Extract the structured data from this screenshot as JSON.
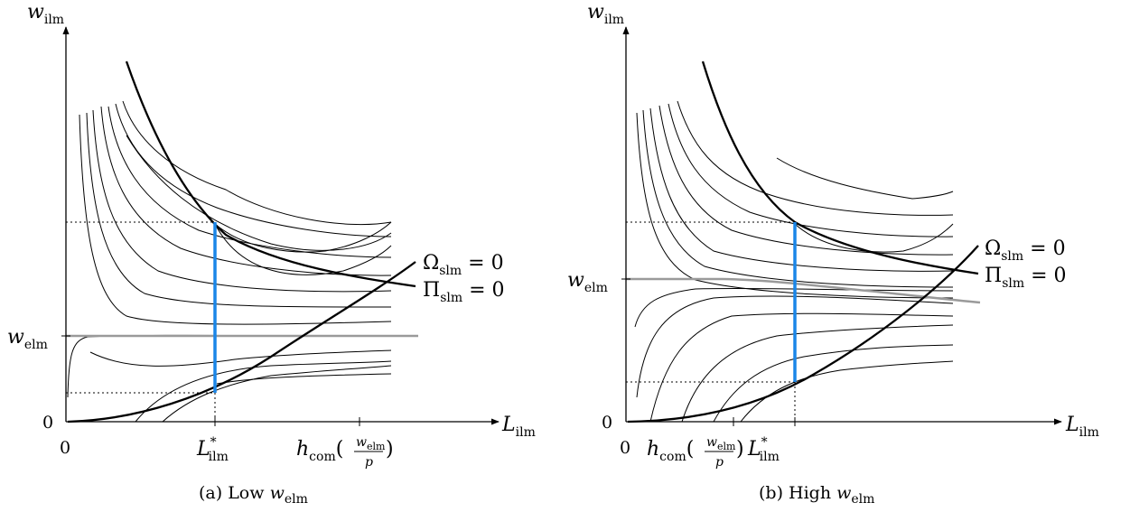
{
  "panels": [
    {
      "id": "a",
      "caption_prefix": "(a) Low ",
      "caption_var": "w",
      "caption_sub": "elm",
      "y_axis": {
        "var": "w",
        "sub": "ilm"
      },
      "x_axis": {
        "var": "L",
        "sub": "ilm"
      },
      "origin_x": "0",
      "origin_y": "0",
      "y_tick": {
        "var": "w",
        "sub": "elm"
      },
      "x_tick_opt": {
        "var": "L",
        "sub": "ilm",
        "sup": "*"
      },
      "x_tick_h": {
        "h": "h",
        "hsub": "com",
        "num": "w",
        "numsub": "elm",
        "den": "p"
      },
      "legend_omega": {
        "sym": "Ω",
        "sub": "slm",
        "rest": " = 0"
      },
      "legend_pi": {
        "sym": "Π",
        "sub": "slm",
        "rest": " = 0"
      }
    },
    {
      "id": "b",
      "caption_prefix": "(b) High ",
      "caption_var": "w",
      "caption_sub": "elm",
      "y_axis": {
        "var": "w",
        "sub": "ilm"
      },
      "x_axis": {
        "var": "L",
        "sub": "ilm"
      },
      "origin_x": "0",
      "origin_y": "0",
      "y_tick": {
        "var": "w",
        "sub": "elm"
      },
      "x_tick_opt": {
        "var": "L",
        "sub": "ilm",
        "sup": "*"
      },
      "x_tick_h": {
        "h": "h",
        "hsub": "com",
        "num": "w",
        "numsub": "elm",
        "den": "p"
      },
      "legend_omega": {
        "sym": "Ω",
        "sub": "slm",
        "rest": " = 0"
      },
      "legend_pi": {
        "sym": "Π",
        "sub": "slm",
        "rest": " = 0"
      }
    }
  ],
  "colors": {
    "axis": "#000000",
    "thin_curve": "#000000",
    "bold_curve": "#000000",
    "w_elm_line": "#9a9a9a",
    "optimum_segment": "#1a86e8"
  }
}
